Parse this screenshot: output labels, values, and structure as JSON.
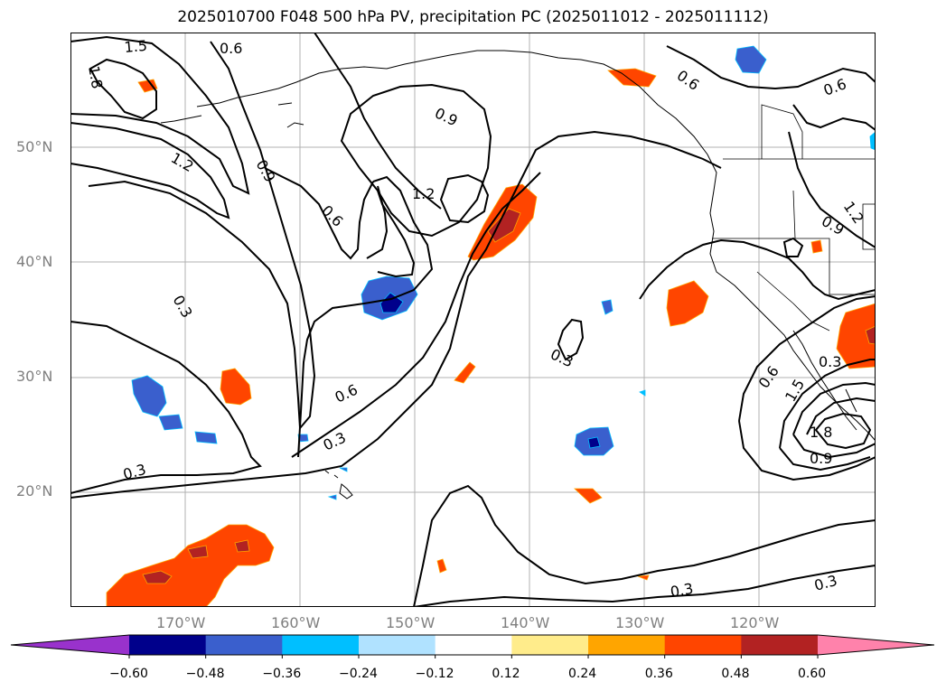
{
  "title": "2025010700 F048 500 hPa PV, precipitation PC (2025011012 - 2025011112)",
  "map": {
    "lon_range": [
      -180,
      -110
    ],
    "lat_range": [
      10,
      60
    ],
    "lat_ticks": [
      {
        "value": 20,
        "label": "20°N"
      },
      {
        "value": 30,
        "label": "30°N"
      },
      {
        "value": 40,
        "label": "40°N"
      },
      {
        "value": 50,
        "label": "50°N"
      }
    ],
    "lon_ticks": [
      {
        "value": -170,
        "label": "170°W"
      },
      {
        "value": -160,
        "label": "160°W"
      },
      {
        "value": -150,
        "label": "150°W"
      },
      {
        "value": -140,
        "label": "140°W"
      },
      {
        "value": -130,
        "label": "130°W"
      },
      {
        "value": -120,
        "label": "120°W"
      }
    ],
    "gridlines": true,
    "contour_labels": [
      "1.5",
      "1.8",
      "0.6",
      "0.9",
      "1.2",
      "0.9",
      "0.6",
      "1.2",
      "0.3",
      "0.6",
      "0.3",
      "0.3",
      "0.6",
      "0.3",
      "0.6",
      "0.9",
      "1.2",
      "1.5",
      "1.8",
      "0.9",
      "0.3",
      "0.3",
      "0.6",
      "0.3"
    ]
  },
  "colorbar": {
    "colors": [
      "#9932cc",
      "#00008b",
      "#3a5fcd",
      "#00bfff",
      "#b0e2ff",
      "#ffffff",
      "#ffec8b",
      "#ffa500",
      "#ff4500",
      "#b22222",
      "#ff82ab"
    ],
    "tick_labels": [
      "−0.60",
      "−0.48",
      "−0.36",
      "−0.24",
      "−0.12",
      "0.12",
      "0.24",
      "0.36",
      "0.48",
      "0.60"
    ]
  }
}
